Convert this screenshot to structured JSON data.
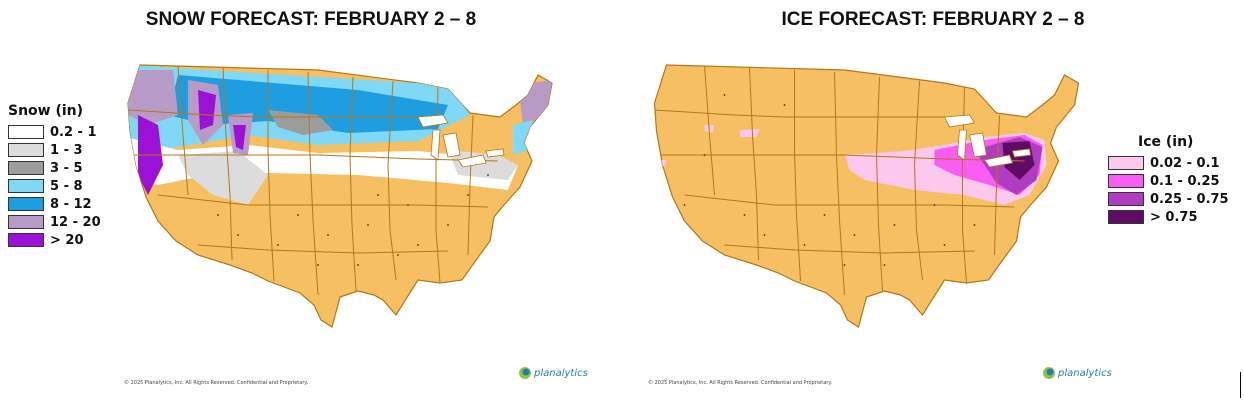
{
  "snow": {
    "title": "SNOW FORECAST: FEBRUARY 2 – 8",
    "legend_title": "Snow (in)",
    "legend": [
      {
        "label": "0.2 - 1",
        "color": "#ffffff"
      },
      {
        "label": "1 - 3",
        "color": "#dcdcdc"
      },
      {
        "label": "3 - 5",
        "color": "#9c9c9c"
      },
      {
        "label": "5 - 8",
        "color": "#7fd8f6"
      },
      {
        "label": "8 - 12",
        "color": "#1e9ee0"
      },
      {
        "label": "12 - 20",
        "color": "#b79bc6"
      },
      {
        "label": "> 20",
        "color": "#9b12d6"
      }
    ],
    "copyright": "© 2025 Planalytics, Inc. All Rights Reserved. Confidential and Proprietary.",
    "logo_text": "planalytics"
  },
  "ice": {
    "title": "ICE FORECAST: FEBRUARY 2 – 8",
    "legend_title": "Ice (in)",
    "legend": [
      {
        "label": "0.02 - 0.1",
        "color": "#fcc8ee"
      },
      {
        "label": "0.1 - 0.25",
        "color": "#f85cf0"
      },
      {
        "label": "0.25 - 0.75",
        "color": "#b23cc0"
      },
      {
        "label": "> 0.75",
        "color": "#5e0b66"
      }
    ],
    "copyright": "© 2025 Planalytics, Inc. All Rights Reserved. Confidential and Proprietary.",
    "logo_text": "planalytics"
  },
  "map_colors": {
    "land": "#f5bf62",
    "border": "#b07818"
  }
}
